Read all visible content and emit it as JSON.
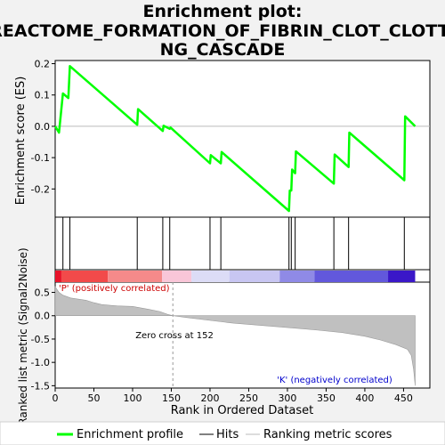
{
  "chart_data": {
    "type": "line",
    "title_lines": [
      "Enrichment plot:",
      "REACTOME_FORMATION_OF_FIBRIN_CLOT_CLOTTI",
      "NG_CASCADE"
    ],
    "es_panel": {
      "ylabel": "Enrichment score (ES)",
      "ylim": [
        -0.29,
        0.21
      ],
      "yticks": [
        0.2,
        0.1,
        0.0,
        -0.1,
        -0.2
      ],
      "ytick_labels": [
        "0.2",
        "0.1",
        "0.0",
        "-0.1",
        "-0.2"
      ],
      "series_name": "Enrichment profile",
      "x": [
        0,
        5,
        10,
        17,
        19,
        106,
        107,
        139,
        140,
        148,
        149,
        200,
        201,
        214,
        215,
        302,
        303,
        305,
        306,
        310,
        311,
        360,
        361,
        379,
        380,
        451,
        452,
        465
      ],
      "y": [
        0.0,
        -0.02,
        0.105,
        0.09,
        0.192,
        0.005,
        0.055,
        -0.015,
        0.002,
        -0.008,
        -0.004,
        -0.118,
        -0.092,
        -0.118,
        -0.082,
        -0.27,
        -0.205,
        -0.205,
        -0.138,
        -0.15,
        -0.08,
        -0.183,
        -0.09,
        -0.13,
        -0.02,
        -0.172,
        0.032,
        0.0
      ]
    },
    "hits_panel": {
      "series_name": "Hits",
      "hit_ranks": [
        10,
        19,
        106,
        139,
        148,
        200,
        214,
        302,
        305,
        310,
        360,
        379,
        451
      ]
    },
    "rank_panel": {
      "ylabel": "Ranked list metric (Signal2Noise)",
      "ylim": [
        -1.55,
        0.72
      ],
      "yticks": [
        0.5,
        0.0,
        -0.5,
        -1.0,
        -1.5
      ],
      "ytick_labels": [
        "0.5",
        "0.0",
        "-0.5",
        "-1.0",
        "-1.5"
      ],
      "series_name": "Ranking metric scores",
      "curve_x": [
        0,
        5,
        10,
        20,
        40,
        50,
        60,
        80,
        100,
        120,
        135,
        145,
        152,
        170,
        200,
        230,
        260,
        290,
        320,
        340,
        370,
        400,
        420,
        440,
        455,
        460,
        463,
        465
      ],
      "curve_y": [
        0.62,
        0.5,
        0.44,
        0.38,
        0.33,
        0.28,
        0.24,
        0.21,
        0.2,
        0.14,
        0.09,
        0.03,
        0.0,
        -0.04,
        -0.1,
        -0.16,
        -0.2,
        -0.24,
        -0.28,
        -0.31,
        -0.36,
        -0.44,
        -0.52,
        -0.62,
        -0.72,
        -0.85,
        -1.15,
        -1.5
      ],
      "zero_cross_rank": 152,
      "zero_cross_label": "Zero cross at 152",
      "pos_label": "'P' (positively correlated)",
      "neg_label": "'K' (negatively correlated)"
    },
    "heatmap": {
      "segments": [
        {
          "x0": 0,
          "x1": 8,
          "color": "#e8132a"
        },
        {
          "x0": 8,
          "x1": 68,
          "color": "#f24a4a"
        },
        {
          "x0": 68,
          "x1": 138,
          "color": "#f58a8a"
        },
        {
          "x0": 138,
          "x1": 176,
          "color": "#f9c6d8"
        },
        {
          "x0": 176,
          "x1": 225,
          "color": "#dcdcf6"
        },
        {
          "x0": 225,
          "x1": 290,
          "color": "#c8c6f2"
        },
        {
          "x0": 290,
          "x1": 335,
          "color": "#8f8ae6"
        },
        {
          "x0": 335,
          "x1": 430,
          "color": "#6258dc"
        },
        {
          "x0": 430,
          "x1": 465,
          "color": "#3a17c8"
        }
      ]
    },
    "x_axis": {
      "xlabel": "Rank in Ordered Dataset",
      "xlim": [
        0,
        484
      ],
      "xticks": [
        0,
        50,
        100,
        150,
        200,
        250,
        300,
        350,
        400,
        450
      ],
      "xtick_labels": [
        "0",
        "50",
        "100",
        "150",
        "200",
        "250",
        "300",
        "350",
        "400",
        "450"
      ]
    },
    "legend": {
      "placement": "bottom",
      "items": [
        {
          "label": "Enrichment profile",
          "color": "#00ff00"
        },
        {
          "label": "Hits",
          "color": "#000000"
        },
        {
          "label": "Ranking metric scores",
          "color": "#bbbbbb"
        }
      ]
    },
    "colors": {
      "profile": "#00ff00",
      "hits": "#000000",
      "metric_fill": "#c0c0c0",
      "pos_text": "#cc0000",
      "neg_text": "#0000cc",
      "background": "#f2f2f2"
    }
  }
}
